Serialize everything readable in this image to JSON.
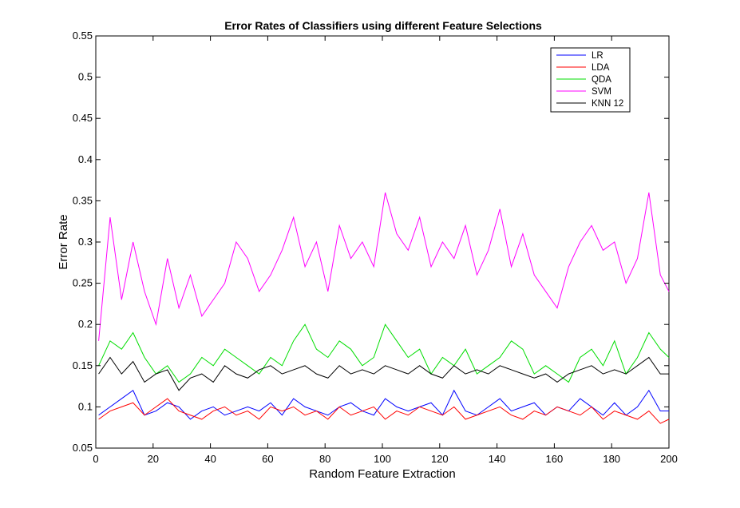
{
  "chart_data": {
    "type": "line",
    "title": "Error Rates of Classifiers using different Feature Selections",
    "xlabel": "Random Feature Extraction",
    "ylabel": "Error Rate",
    "xlim": [
      0,
      200
    ],
    "ylim": [
      0.05,
      0.55
    ],
    "xticks": [
      0,
      20,
      40,
      60,
      80,
      100,
      120,
      140,
      160,
      180,
      200
    ],
    "yticks": [
      0.05,
      0.1,
      0.15,
      0.2,
      0.25,
      0.3,
      0.35,
      0.4,
      0.45,
      0.5,
      0.55
    ],
    "ytick_labels": [
      "0.05",
      "0.1",
      "0.15",
      "0.2",
      "0.25",
      "0.3",
      "0.35",
      "0.4",
      "0.45",
      "0.5",
      "0.55"
    ],
    "grid": false,
    "legend_position": "top-right",
    "x": [
      1,
      5,
      9,
      13,
      17,
      21,
      25,
      29,
      33,
      37,
      41,
      45,
      49,
      53,
      57,
      61,
      65,
      69,
      73,
      77,
      81,
      85,
      89,
      93,
      97,
      101,
      105,
      109,
      113,
      117,
      121,
      125,
      129,
      133,
      137,
      141,
      145,
      149,
      153,
      157,
      161,
      165,
      169,
      173,
      177,
      181,
      185,
      189,
      193,
      197,
      200
    ],
    "series": [
      {
        "name": "LR",
        "color": "#0000ff",
        "values": [
          0.09,
          0.1,
          0.11,
          0.12,
          0.09,
          0.095,
          0.105,
          0.1,
          0.085,
          0.095,
          0.1,
          0.09,
          0.095,
          0.1,
          0.095,
          0.105,
          0.09,
          0.11,
          0.1,
          0.095,
          0.09,
          0.1,
          0.105,
          0.095,
          0.09,
          0.11,
          0.1,
          0.095,
          0.1,
          0.105,
          0.09,
          0.12,
          0.095,
          0.09,
          0.1,
          0.11,
          0.095,
          0.1,
          0.105,
          0.09,
          0.1,
          0.095,
          0.11,
          0.1,
          0.09,
          0.105,
          0.09,
          0.1,
          0.12,
          0.095,
          0.095
        ]
      },
      {
        "name": "LDA",
        "color": "#ff0000",
        "values": [
          0.085,
          0.095,
          0.1,
          0.105,
          0.09,
          0.1,
          0.11,
          0.095,
          0.09,
          0.085,
          0.095,
          0.1,
          0.09,
          0.095,
          0.085,
          0.1,
          0.095,
          0.1,
          0.09,
          0.095,
          0.085,
          0.1,
          0.09,
          0.095,
          0.1,
          0.085,
          0.095,
          0.09,
          0.1,
          0.095,
          0.09,
          0.1,
          0.085,
          0.09,
          0.095,
          0.1,
          0.09,
          0.085,
          0.095,
          0.09,
          0.1,
          0.095,
          0.09,
          0.1,
          0.085,
          0.095,
          0.09,
          0.085,
          0.095,
          0.08,
          0.085
        ]
      },
      {
        "name": "QDA",
        "color": "#00dd00",
        "values": [
          0.15,
          0.18,
          0.17,
          0.19,
          0.16,
          0.14,
          0.15,
          0.13,
          0.14,
          0.16,
          0.15,
          0.17,
          0.16,
          0.15,
          0.14,
          0.16,
          0.15,
          0.18,
          0.2,
          0.17,
          0.16,
          0.18,
          0.17,
          0.15,
          0.16,
          0.2,
          0.18,
          0.16,
          0.17,
          0.14,
          0.16,
          0.15,
          0.17,
          0.14,
          0.15,
          0.16,
          0.18,
          0.17,
          0.14,
          0.15,
          0.14,
          0.13,
          0.16,
          0.17,
          0.15,
          0.18,
          0.14,
          0.16,
          0.19,
          0.17,
          0.16
        ]
      },
      {
        "name": "SVM",
        "color": "#ff00ff",
        "values": [
          0.18,
          0.33,
          0.23,
          0.3,
          0.24,
          0.2,
          0.28,
          0.22,
          0.26,
          0.21,
          0.23,
          0.25,
          0.3,
          0.28,
          0.24,
          0.26,
          0.29,
          0.33,
          0.27,
          0.3,
          0.24,
          0.32,
          0.28,
          0.3,
          0.27,
          0.36,
          0.31,
          0.29,
          0.33,
          0.27,
          0.3,
          0.28,
          0.32,
          0.26,
          0.29,
          0.34,
          0.27,
          0.31,
          0.26,
          0.24,
          0.22,
          0.27,
          0.3,
          0.32,
          0.29,
          0.3,
          0.25,
          0.28,
          0.36,
          0.26,
          0.24
        ]
      },
      {
        "name": "KNN 12",
        "color": "#000000",
        "values": [
          0.14,
          0.16,
          0.14,
          0.155,
          0.13,
          0.14,
          0.145,
          0.12,
          0.135,
          0.14,
          0.13,
          0.15,
          0.14,
          0.135,
          0.145,
          0.15,
          0.14,
          0.145,
          0.15,
          0.14,
          0.135,
          0.15,
          0.14,
          0.145,
          0.14,
          0.15,
          0.145,
          0.14,
          0.15,
          0.14,
          0.135,
          0.15,
          0.14,
          0.145,
          0.14,
          0.15,
          0.145,
          0.14,
          0.135,
          0.14,
          0.13,
          0.14,
          0.145,
          0.15,
          0.14,
          0.145,
          0.14,
          0.15,
          0.16,
          0.14,
          0.14
        ]
      }
    ]
  }
}
